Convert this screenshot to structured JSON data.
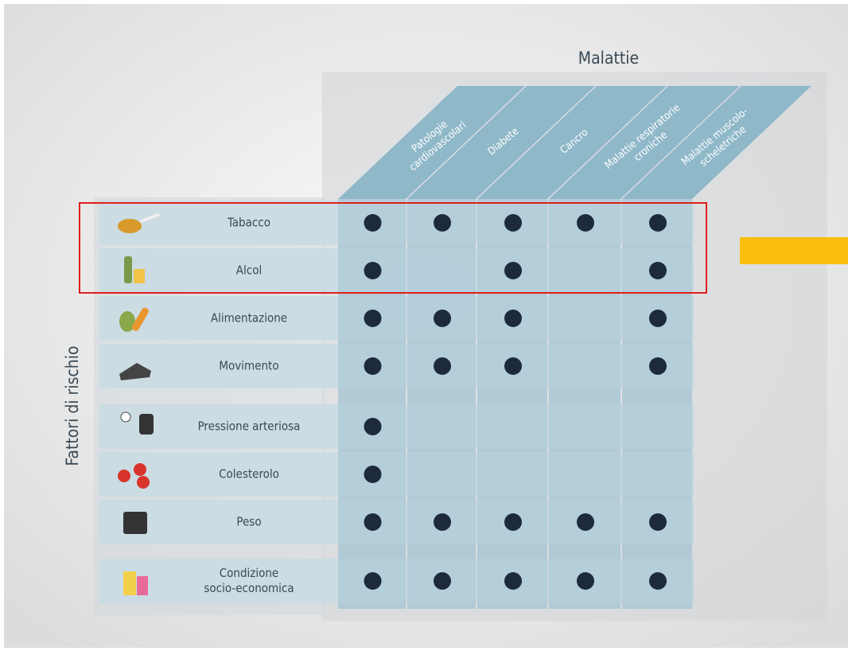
{
  "title": "Malattie",
  "side_label": "Fattori di rischio",
  "columns": [
    {
      "lines": [
        "Patologie",
        "cardiovascolari"
      ]
    },
    {
      "lines": [
        "Diabete"
      ]
    },
    {
      "lines": [
        "Cancro"
      ]
    },
    {
      "lines": [
        "Malattie respiratorie",
        "croniche"
      ]
    },
    {
      "lines": [
        "Malattie muscolo-",
        "scheletriche"
      ]
    }
  ],
  "rows": [
    {
      "lines": [
        "Tabacco"
      ],
      "marks": [
        true,
        true,
        true,
        true,
        true
      ]
    },
    {
      "lines": [
        "Alcol"
      ],
      "marks": [
        true,
        false,
        true,
        false,
        true
      ]
    },
    {
      "lines": [
        "Alimentazione"
      ],
      "marks": [
        true,
        true,
        true,
        false,
        true
      ]
    },
    {
      "lines": [
        "Movimento"
      ],
      "marks": [
        true,
        true,
        true,
        false,
        true
      ]
    },
    {
      "lines": [
        "Pressione arteriosa"
      ],
      "marks": [
        true,
        false,
        false,
        false,
        false
      ]
    },
    {
      "lines": [
        "Colesterolo"
      ],
      "marks": [
        true,
        false,
        false,
        false,
        false
      ]
    },
    {
      "lines": [
        "Peso"
      ],
      "marks": [
        true,
        true,
        true,
        true,
        true
      ]
    },
    {
      "lines": [
        "Condizione",
        "socio-economica"
      ],
      "marks": [
        true,
        true,
        true,
        true,
        true
      ]
    }
  ]
}
